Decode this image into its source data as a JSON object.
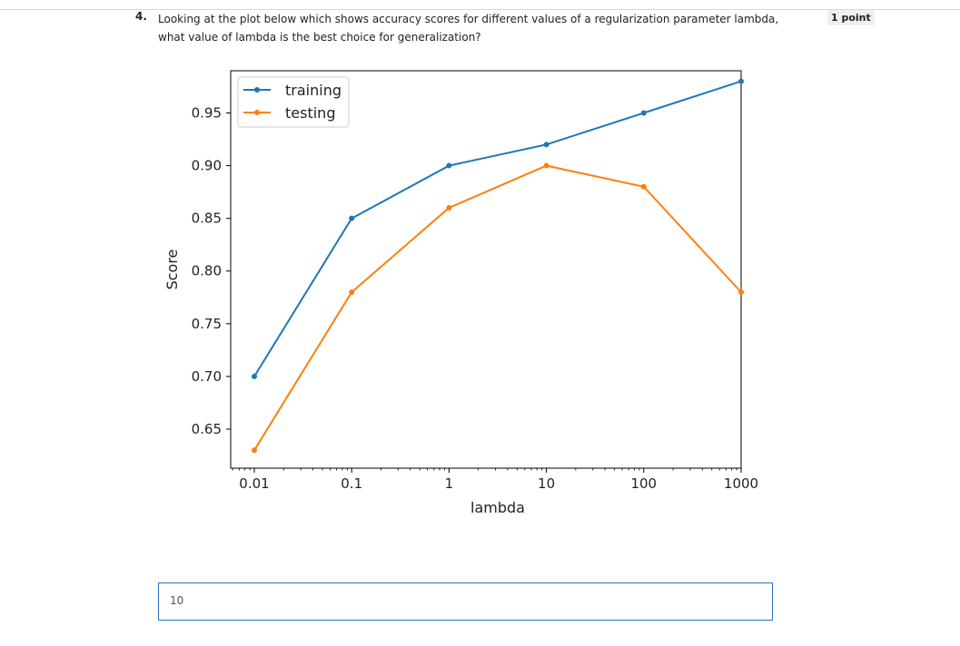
{
  "question": {
    "number": "4.",
    "line1": "Looking at the plot below which shows accuracy scores for different values of a regularization parameter lambda,",
    "line2": "what value of lambda is the best choice for generalization?",
    "points": "1 point"
  },
  "answer": {
    "value": "10"
  },
  "chart_data": {
    "type": "line",
    "xlabel": "lambda",
    "ylabel": "Score",
    "xscale": "log",
    "x": [
      0.01,
      0.1,
      1,
      10,
      100,
      1000
    ],
    "x_tick_labels": [
      "0.01",
      "0.1",
      "1",
      "10",
      "100",
      "1000"
    ],
    "y_ticks": [
      0.65,
      0.7,
      0.75,
      0.8,
      0.85,
      0.9,
      0.95
    ],
    "y_tick_labels": [
      "0.65",
      "0.70",
      "0.75",
      "0.80",
      "0.85",
      "0.90",
      "0.95"
    ],
    "ylim": [
      0.613,
      0.99
    ],
    "legend_position": "top-left",
    "series": [
      {
        "name": "training",
        "color": "#1f77b4",
        "values": [
          0.7,
          0.85,
          0.9,
          0.92,
          0.95,
          0.98
        ]
      },
      {
        "name": "testing",
        "color": "#ff7f0e",
        "values": [
          0.63,
          0.78,
          0.86,
          0.9,
          0.88,
          0.78
        ]
      }
    ]
  }
}
